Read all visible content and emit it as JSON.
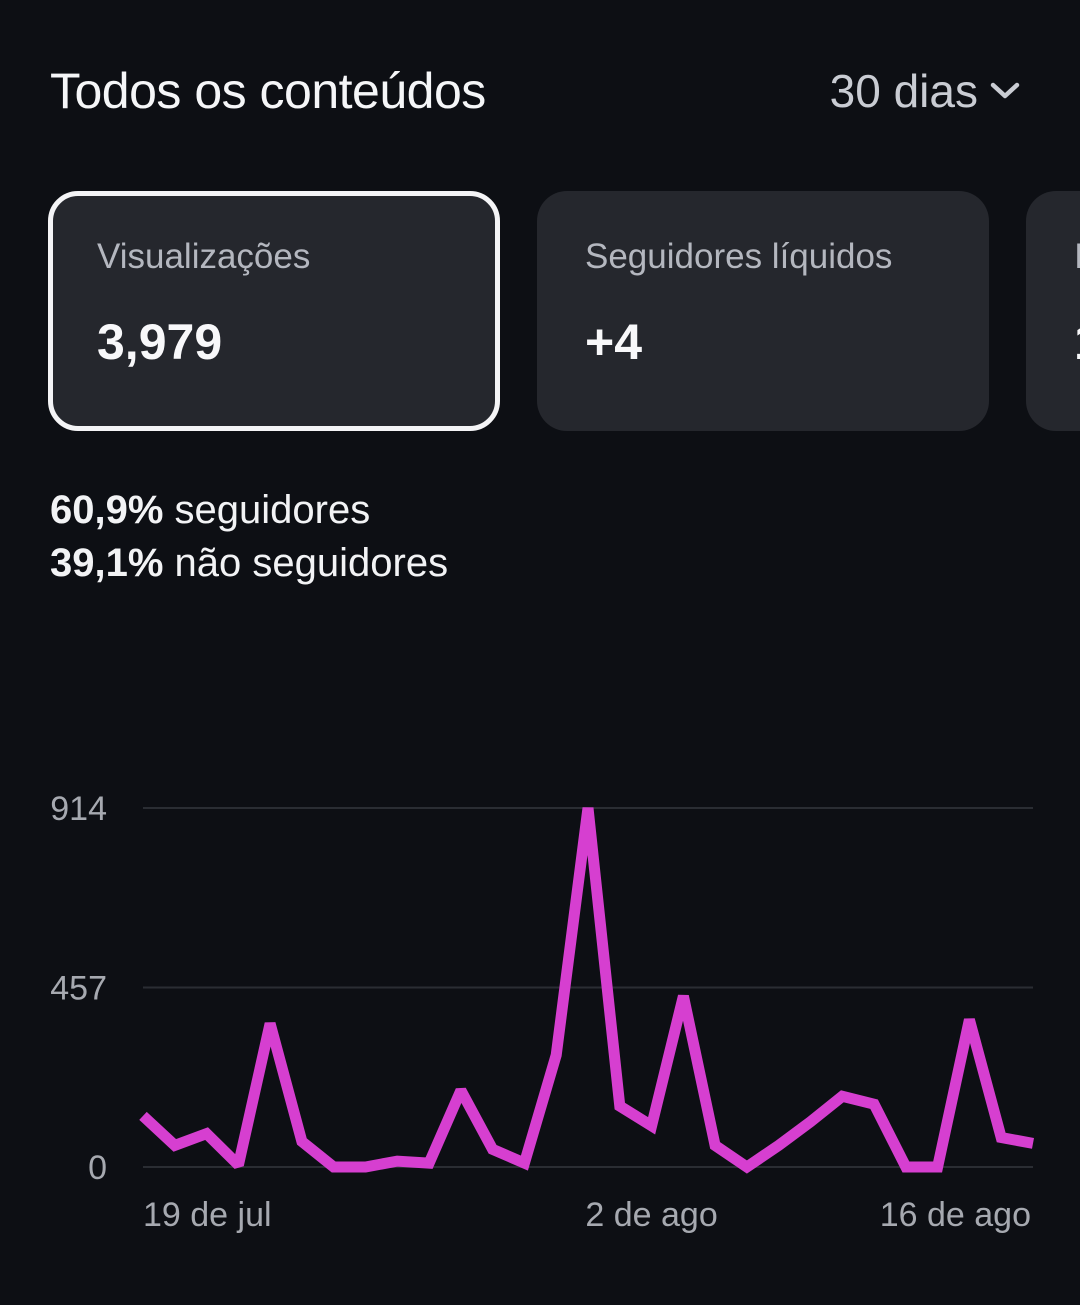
{
  "header": {
    "title": "Todos os conteúdos",
    "period_label": "30 dias"
  },
  "cards": [
    {
      "label": "Visualizações",
      "value": "3,979",
      "selected": true
    },
    {
      "label": "Seguidores líquidos",
      "value": "+4",
      "selected": false
    },
    {
      "label": "I",
      "value": "1",
      "selected": false
    }
  ],
  "breakdown": {
    "followers_pct": "60,9%",
    "followers_label": "seguidores",
    "non_followers_pct": "39,1%",
    "non_followers_label": "não seguidores"
  },
  "colors": {
    "background": "#0d0f14",
    "card": "#25272d",
    "line": "#d63fd0",
    "grid": "#2a2d33"
  },
  "chart_data": {
    "type": "line",
    "title": "",
    "xlabel": "",
    "ylabel": "",
    "ylim": [
      0,
      914
    ],
    "yticks": [
      0,
      457,
      914
    ],
    "x_tick_labels": [
      {
        "index": 2,
        "label": "19 de jul"
      },
      {
        "index": 16,
        "label": "2 de ago"
      },
      {
        "index": 30,
        "label": "16 de ago"
      }
    ],
    "grid": true,
    "legend": "none",
    "series": [
      {
        "color": "#d63fd0",
        "values": [
          130,
          55,
          85,
          5,
          365,
          65,
          0,
          0,
          15,
          10,
          195,
          45,
          10,
          285,
          914,
          155,
          105,
          435,
          55,
          0,
          55,
          115,
          180,
          160,
          0,
          0,
          375,
          75,
          60
        ]
      }
    ]
  }
}
